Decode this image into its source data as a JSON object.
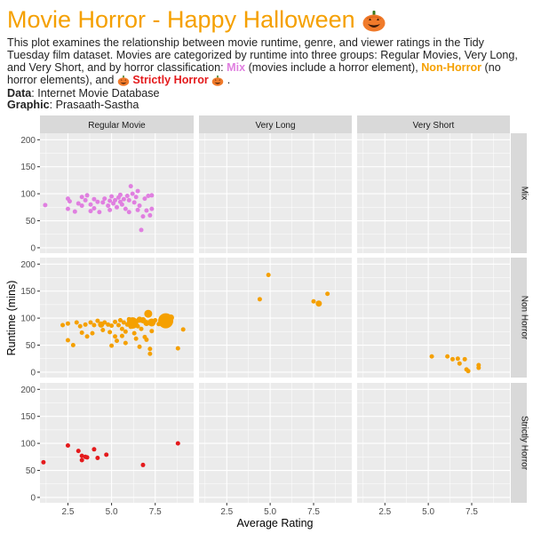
{
  "title": "Movie Horror - Happy Halloween",
  "subtitle": {
    "part1": "This plot examines the relationship between movie runtime, genre, and viewer ratings in the Tidy Tuesday film dataset. Movies are categorized by runtime into three groups: Regular Movies, Very Long, and Very Short, and by horror classification: ",
    "mix_label": "Mix",
    "part2": " (movies include a horror element), ",
    "nonhorror_label": "Non-Horror",
    "part3": " (no horror elements), and ",
    "strict_label": "Strictly Horror",
    "part4": " ."
  },
  "caption": {
    "data_label": "Data",
    "data_value": ": Internet Movie Database",
    "graphic_label": "Graphic",
    "graphic_value": ": Prasaath-Sastha"
  },
  "colors": {
    "title": "#f5a000",
    "mix": "#e07fe0",
    "non_horror": "#f5a000",
    "strictly_horror": "#e41a1c",
    "panel_bg": "#ebebeb",
    "strip_bg": "#d9d9d9",
    "grid": "#ffffff"
  },
  "icons": {
    "title_icon": "jack-o-lantern-icon"
  },
  "chart_data": {
    "type": "scatter",
    "xlabel": "Average Rating",
    "ylabel": "Runtime (mins)",
    "xlim": [
      0.9,
      9.7
    ],
    "ylim": [
      -10,
      212
    ],
    "x_ticks": [
      2.5,
      5.0,
      7.5
    ],
    "x_tick_labels": [
      "2.5",
      "5.0",
      "7.5"
    ],
    "y_ticks": [
      0,
      50,
      100,
      150,
      200
    ],
    "y_tick_labels": [
      "0",
      "50",
      "100",
      "150",
      "200"
    ],
    "grid": true,
    "facet_columns": [
      "Regular Movie",
      "Very Long",
      "Very Short"
    ],
    "facet_rows": [
      "Mix",
      "Non Horror",
      "Strictly Horror"
    ],
    "row_colors": [
      "#e07fe0",
      "#f5a000",
      "#e41a1c"
    ],
    "panels": [
      {
        "row": 0,
        "col": 0,
        "points": [
          [
            1.2,
            79
          ],
          [
            2.5,
            91
          ],
          [
            2.5,
            72
          ],
          [
            2.6,
            86
          ],
          [
            2.9,
            67
          ],
          [
            3.1,
            82
          ],
          [
            3.3,
            94
          ],
          [
            3.3,
            78
          ],
          [
            3.5,
            88
          ],
          [
            3.6,
            97
          ],
          [
            3.8,
            80
          ],
          [
            3.8,
            68
          ],
          [
            4.0,
            90
          ],
          [
            4.0,
            73
          ],
          [
            4.2,
            85
          ],
          [
            4.3,
            66
          ],
          [
            4.5,
            84
          ],
          [
            4.6,
            91
          ],
          [
            4.8,
            78
          ],
          [
            4.9,
            70
          ],
          [
            4.9,
            87
          ],
          [
            5.0,
            95
          ],
          [
            5.1,
            82
          ],
          [
            5.2,
            88
          ],
          [
            5.3,
            75
          ],
          [
            5.4,
            93
          ],
          [
            5.5,
            85
          ],
          [
            5.5,
            98
          ],
          [
            5.6,
            80
          ],
          [
            5.7,
            90
          ],
          [
            5.8,
            72
          ],
          [
            5.9,
            96
          ],
          [
            6.0,
            66
          ],
          [
            6.0,
            88
          ],
          [
            6.1,
            114
          ],
          [
            6.2,
            100
          ],
          [
            6.3,
            84
          ],
          [
            6.4,
            94
          ],
          [
            6.5,
            70
          ],
          [
            6.5,
            105
          ],
          [
            6.6,
            78
          ],
          [
            6.7,
            33
          ],
          [
            6.8,
            58
          ],
          [
            6.9,
            91
          ],
          [
            7.0,
            69
          ],
          [
            7.1,
            96
          ],
          [
            7.2,
            60
          ],
          [
            7.3,
            97
          ],
          [
            7.3,
            72
          ]
        ]
      },
      {
        "row": 0,
        "col": 1,
        "points": []
      },
      {
        "row": 0,
        "col": 2,
        "points": []
      },
      {
        "row": 1,
        "col": 0,
        "points": [
          [
            2.2,
            87,
            2.5
          ],
          [
            2.5,
            90,
            2.5
          ],
          [
            2.5,
            59,
            2.5
          ],
          [
            2.8,
            50,
            2.5
          ],
          [
            3.0,
            92,
            2.5
          ],
          [
            3.2,
            85,
            2.5
          ],
          [
            3.3,
            73,
            2.5
          ],
          [
            3.5,
            88,
            2.5
          ],
          [
            3.6,
            66,
            2.5
          ],
          [
            3.8,
            92,
            2.5
          ],
          [
            3.9,
            72,
            2.5
          ],
          [
            4.0,
            87,
            2.5
          ],
          [
            4.2,
            95,
            2.5
          ],
          [
            4.4,
            88,
            3.5
          ],
          [
            4.5,
            78,
            2.5
          ],
          [
            4.6,
            92,
            2.5
          ],
          [
            4.8,
            88,
            2.5
          ],
          [
            4.9,
            74,
            2.5
          ],
          [
            5.0,
            86,
            2.5
          ],
          [
            5.0,
            49,
            2.5
          ],
          [
            5.2,
            66,
            2.5
          ],
          [
            5.2,
            93,
            2.5
          ],
          [
            5.3,
            58,
            2.5
          ],
          [
            5.4,
            87,
            2.5
          ],
          [
            5.5,
            96,
            2.5
          ],
          [
            5.6,
            80,
            2.5
          ],
          [
            5.6,
            67,
            2.5
          ],
          [
            5.7,
            92,
            2.5
          ],
          [
            5.8,
            75,
            2.5
          ],
          [
            5.8,
            54,
            2.5
          ],
          [
            5.9,
            88,
            2.5
          ],
          [
            6.0,
            98,
            2.5
          ],
          [
            6.1,
            84,
            2.5
          ],
          [
            6.2,
            91,
            6.5
          ],
          [
            6.3,
            72,
            2.5
          ],
          [
            6.3,
            90,
            2.5
          ],
          [
            6.4,
            62,
            2.5
          ],
          [
            6.5,
            85,
            2.5
          ],
          [
            6.6,
            97,
            3.5
          ],
          [
            6.6,
            47,
            2.5
          ],
          [
            6.7,
            80,
            2.5
          ],
          [
            6.8,
            96,
            3.5
          ],
          [
            6.9,
            65,
            2.5
          ],
          [
            7.0,
            91,
            3.5
          ],
          [
            7.0,
            60,
            2.5
          ],
          [
            7.1,
            108,
            4.5
          ],
          [
            7.2,
            43,
            2.5
          ],
          [
            7.2,
            34,
            2.5
          ],
          [
            7.3,
            92,
            4.5
          ],
          [
            7.3,
            76,
            2.5
          ],
          [
            7.5,
            96,
            2.5
          ],
          [
            7.7,
            89,
            2.5
          ],
          [
            7.9,
            100,
            3.5
          ],
          [
            8.1,
            95,
            8.5
          ],
          [
            8.4,
            101,
            3.5
          ],
          [
            8.8,
            44,
            2.5
          ],
          [
            9.1,
            79,
            2.5
          ]
        ]
      },
      {
        "row": 1,
        "col": 1,
        "points": [
          [
            4.4,
            135,
            2.5
          ],
          [
            4.9,
            180,
            2.5
          ],
          [
            7.5,
            131,
            2.5
          ],
          [
            7.8,
            127,
            3.5
          ],
          [
            8.3,
            145,
            2.5
          ]
        ]
      },
      {
        "row": 1,
        "col": 2,
        "points": [
          [
            5.2,
            29,
            2.5
          ],
          [
            6.1,
            29,
            2.5
          ],
          [
            6.4,
            24,
            2.5
          ],
          [
            6.7,
            25,
            2.5
          ],
          [
            6.8,
            16,
            2.5
          ],
          [
            7.1,
            24,
            2.5
          ],
          [
            7.2,
            5,
            2.5
          ],
          [
            7.3,
            2,
            2.5
          ],
          [
            7.9,
            13,
            2.5
          ],
          [
            7.9,
            8,
            2.5
          ]
        ]
      },
      {
        "row": 2,
        "col": 0,
        "points": [
          [
            1.1,
            65
          ],
          [
            2.5,
            96
          ],
          [
            3.1,
            86
          ],
          [
            3.3,
            77
          ],
          [
            3.3,
            69
          ],
          [
            3.5,
            75
          ],
          [
            3.6,
            74
          ],
          [
            4.0,
            89
          ],
          [
            4.2,
            73
          ],
          [
            4.7,
            79
          ],
          [
            6.8,
            60
          ],
          [
            8.8,
            100
          ]
        ]
      },
      {
        "row": 2,
        "col": 1,
        "points": []
      },
      {
        "row": 2,
        "col": 2,
        "points": []
      }
    ]
  }
}
